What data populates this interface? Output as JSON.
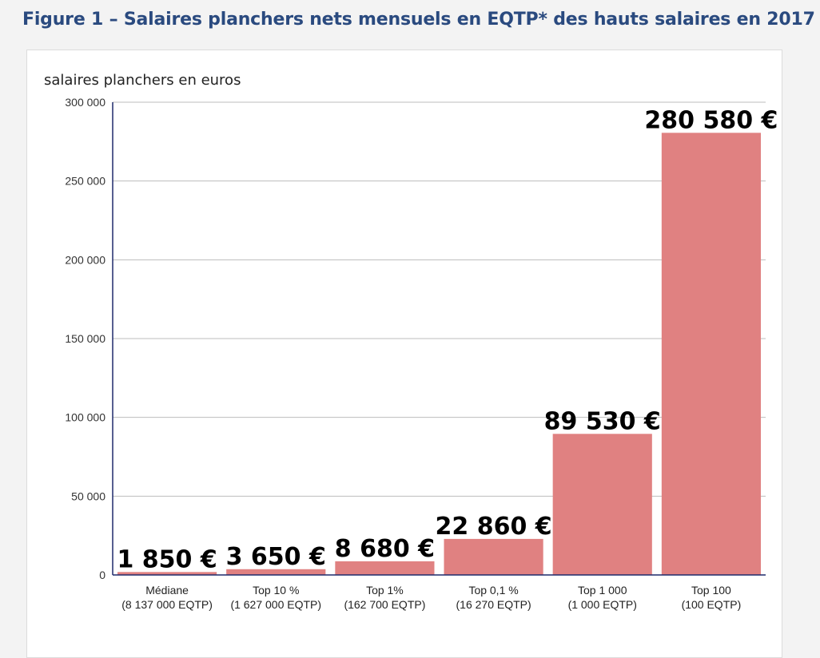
{
  "figure": {
    "title": "Figure 1 – Salaires planchers nets mensuels en EQTP* des hauts salaires en 2017"
  },
  "chart_data": {
    "type": "bar",
    "ylabel": "salaires planchers en euros",
    "ylim": [
      0,
      300000
    ],
    "yticks": [
      0,
      50000,
      100000,
      150000,
      200000,
      250000,
      300000
    ],
    "ytick_labels": [
      "0",
      "50 000",
      "100 000",
      "150 000",
      "200 000",
      "250 000",
      "300 000"
    ],
    "grid": true,
    "bar_color": "#e08181",
    "axis_color": "#1f2a6b",
    "categories": [
      [
        "Médiane",
        "(8 137 000 EQTP)"
      ],
      [
        "Top 10 %",
        "(1 627 000 EQTP)"
      ],
      [
        "Top 1%",
        "(162 700 EQTP)"
      ],
      [
        "Top 0,1 %",
        "(16 270 EQTP)"
      ],
      [
        "Top 1 000",
        "(1 000 EQTP)"
      ],
      [
        "Top 100",
        "(100 EQTP)"
      ]
    ],
    "values": [
      1850,
      3650,
      8680,
      22860,
      89530,
      280580
    ],
    "data_labels": [
      "1 850 €",
      "3 650 €",
      "8 680 €",
      "22 860 €",
      "89 530 €",
      "280 580 €"
    ]
  }
}
